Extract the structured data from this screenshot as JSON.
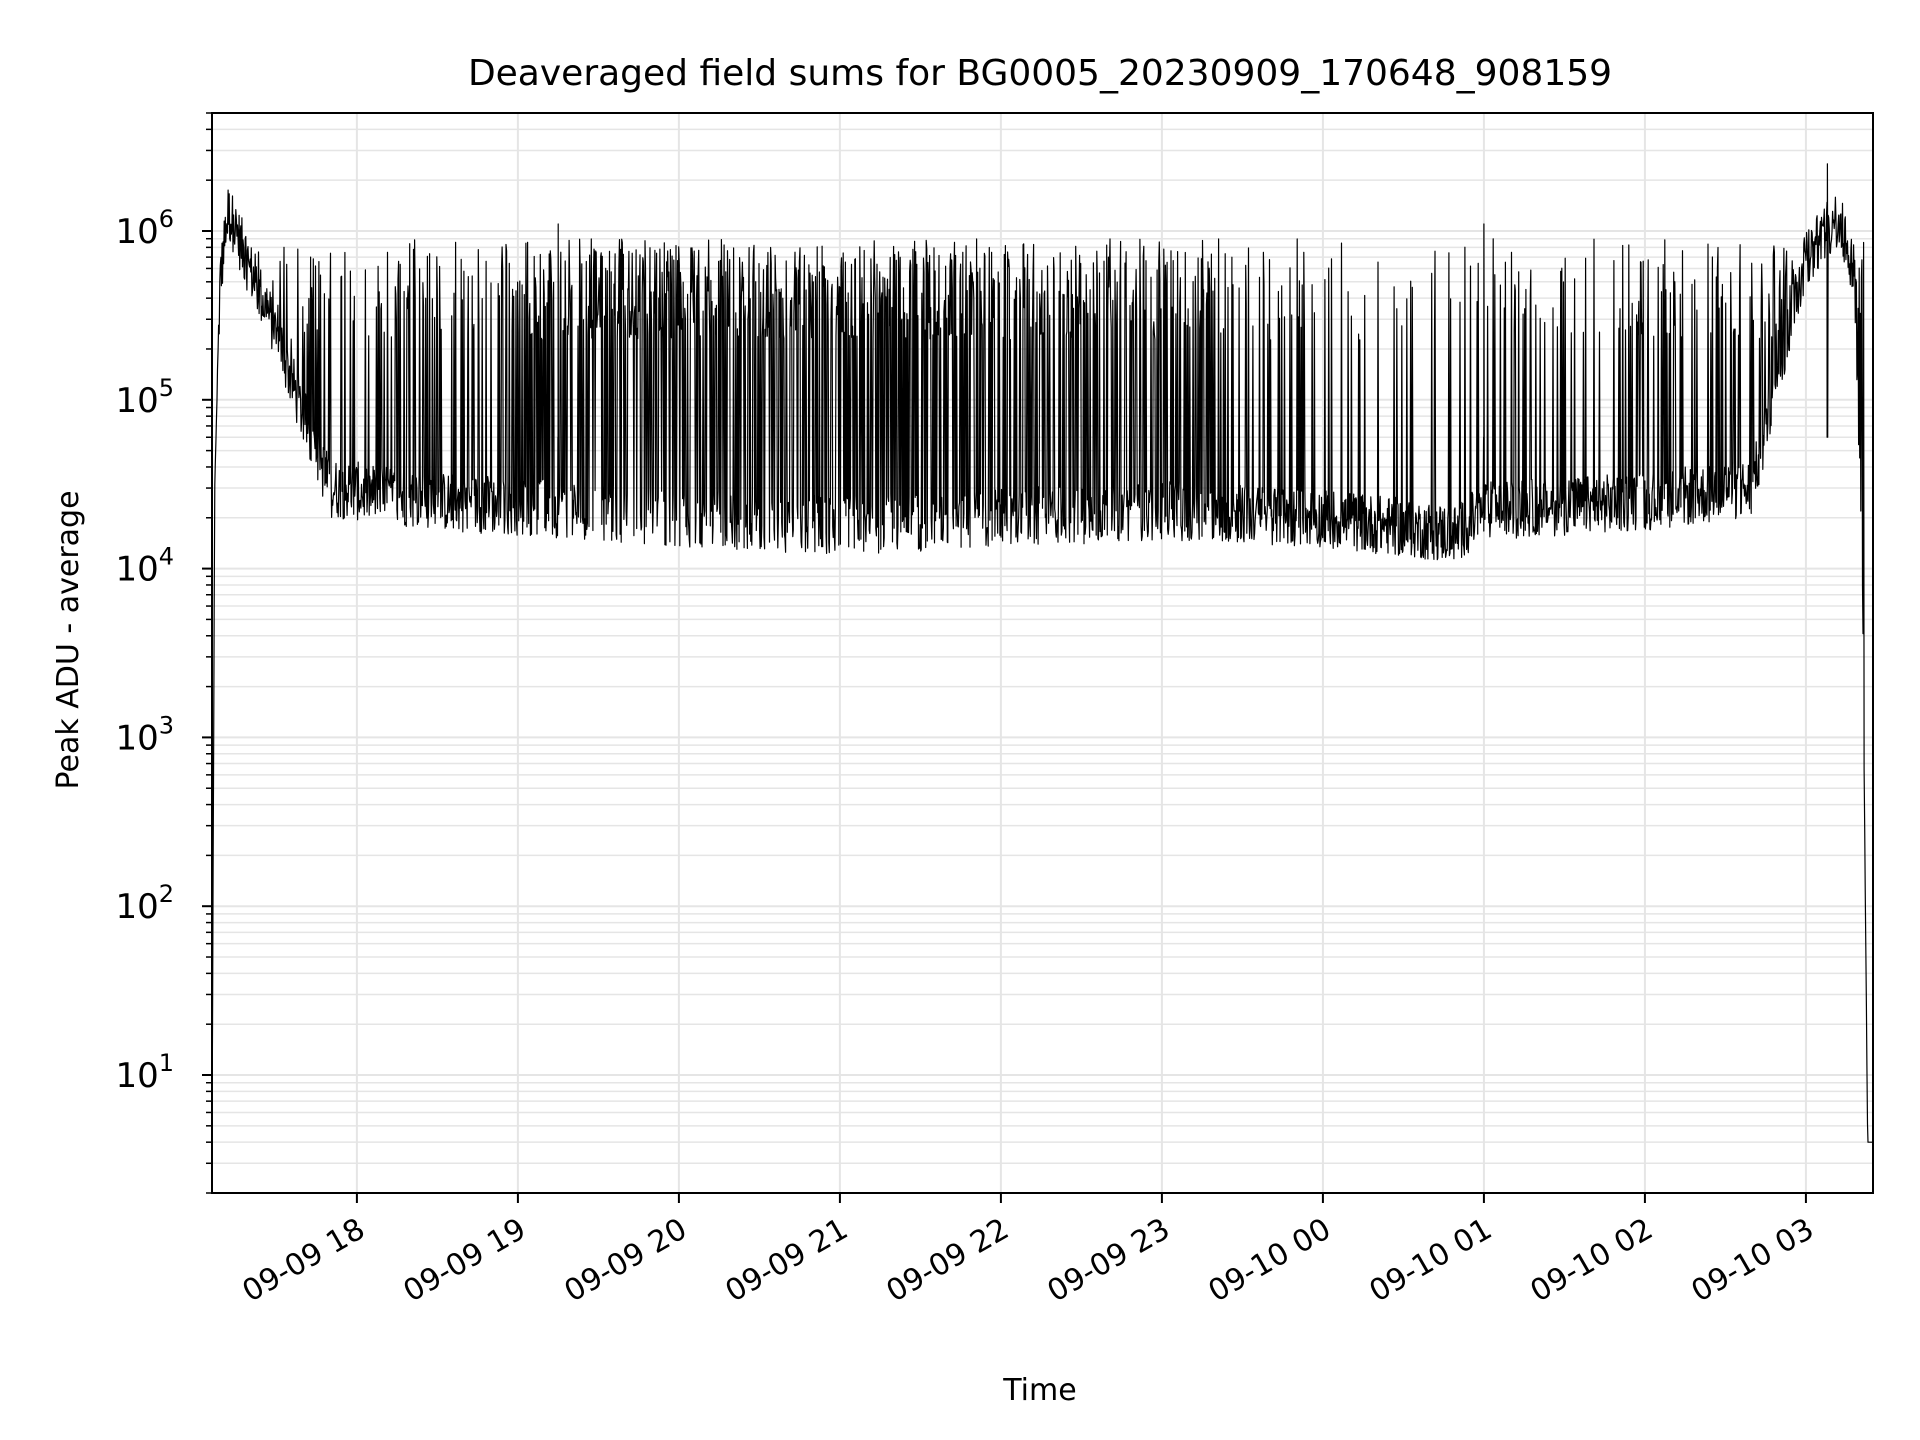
{
  "chart_data": {
    "type": "line",
    "title": "Deaveraged field sums for BG0005_20230909_170648_908159",
    "xlabel": "Time",
    "ylabel": "Peak ADU - average",
    "yscale": "log",
    "ylim": [
      2,
      5000000
    ],
    "xlim": [
      "2023-09-09 17:06",
      "2023-09-10 03:25"
    ],
    "grid": true,
    "line_color": "#000000",
    "grid_color": "#e5e5e5",
    "x_ticks": [
      {
        "value": "2023-09-09 18:00",
        "label": "09-09 18"
      },
      {
        "value": "2023-09-09 19:00",
        "label": "09-09 19"
      },
      {
        "value": "2023-09-09 20:00",
        "label": "09-09 20"
      },
      {
        "value": "2023-09-09 21:00",
        "label": "09-09 21"
      },
      {
        "value": "2023-09-09 22:00",
        "label": "09-09 22"
      },
      {
        "value": "2023-09-09 23:00",
        "label": "09-09 23"
      },
      {
        "value": "2023-09-10 00:00",
        "label": "09-10 00"
      },
      {
        "value": "2023-09-10 01:00",
        "label": "09-10 01"
      },
      {
        "value": "2023-09-10 02:00",
        "label": "09-10 02"
      },
      {
        "value": "2023-09-10 03:00",
        "label": "09-10 03"
      }
    ],
    "y_ticks": [
      {
        "value": 10,
        "base": "10",
        "exp": "1"
      },
      {
        "value": 100,
        "base": "10",
        "exp": "2"
      },
      {
        "value": 1000,
        "base": "10",
        "exp": "3"
      },
      {
        "value": 10000,
        "base": "10",
        "exp": "4"
      },
      {
        "value": 100000,
        "base": "10",
        "exp": "5"
      },
      {
        "value": 1000000,
        "base": "10",
        "exp": "6"
      }
    ],
    "series": [
      {
        "baseline": [
          [
            "2023-09-09 17:06",
            4
          ],
          [
            "2023-09-09 17:07",
            30000
          ],
          [
            "2023-09-09 17:09",
            500000
          ],
          [
            "2023-09-09 17:12",
            1300000
          ],
          [
            "2023-09-09 17:15",
            1000000
          ],
          [
            "2023-09-09 17:20",
            600000
          ],
          [
            "2023-09-09 17:30",
            250000
          ],
          [
            "2023-09-09 17:40",
            80000
          ],
          [
            "2023-09-09 17:50",
            30000
          ],
          [
            "2023-09-09 18:30",
            25000
          ],
          [
            "2023-09-09 19:30",
            22000
          ],
          [
            "2023-09-09 20:00",
            20000
          ],
          [
            "2023-09-09 21:00",
            18000
          ],
          [
            "2023-09-09 22:00",
            20000
          ],
          [
            "2023-09-09 23:00",
            22000
          ],
          [
            "2023-09-10 00:00",
            20000
          ],
          [
            "2023-09-10 00:50",
            16000
          ],
          [
            "2023-09-10 01:00",
            22000
          ],
          [
            "2023-09-10 02:00",
            25000
          ],
          [
            "2023-09-10 02:40",
            30000
          ],
          [
            "2023-09-10 02:50",
            150000
          ],
          [
            "2023-09-10 03:00",
            700000
          ],
          [
            "2023-09-10 03:12",
            1200000
          ],
          [
            "2023-09-10 03:18",
            600000
          ],
          [
            "2023-09-10 03:21",
            10000
          ],
          [
            "2023-09-10 03:23",
            4
          ],
          [
            "2023-09-10 03:25",
            4
          ]
        ],
        "spike_density": [
          [
            "2023-09-09 17:06",
            0.3
          ],
          [
            "2023-09-09 17:40",
            0.15
          ],
          [
            "2023-09-09 18:00",
            0.15
          ],
          [
            "2023-09-09 19:00",
            0.3
          ],
          [
            "2023-09-09 19:30",
            0.55
          ],
          [
            "2023-09-09 20:00",
            0.6
          ],
          [
            "2023-09-09 21:00",
            0.55
          ],
          [
            "2023-09-09 22:00",
            0.45
          ],
          [
            "2023-09-09 23:00",
            0.35
          ],
          [
            "2023-09-10 00:00",
            0.12
          ],
          [
            "2023-09-10 01:00",
            0.1
          ],
          [
            "2023-09-10 02:00",
            0.2
          ],
          [
            "2023-09-10 03:00",
            0.3
          ],
          [
            "2023-09-10 03:25",
            0.3
          ]
        ],
        "spike_peak": 900000,
        "spike_max": [
          [
            "2023-09-10 03:08",
            2500000
          ],
          [
            "2023-09-09 19:15",
            1100000
          ],
          [
            "2023-09-10 01:00",
            1100000
          ]
        ]
      }
    ]
  }
}
